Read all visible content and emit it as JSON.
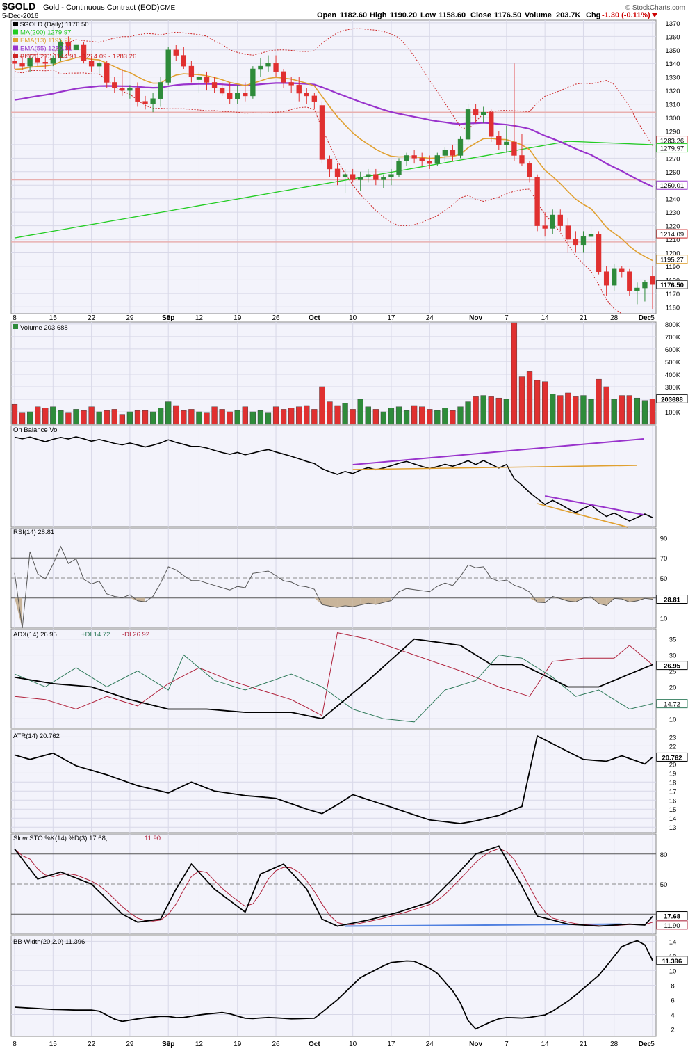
{
  "header": {
    "symbol": "$GOLD",
    "description": "Gold - Continuous Contract (EOD)",
    "exchange": "CME",
    "date": "5-Dec-2016",
    "open_label": "Open",
    "open": "1182.60",
    "high_label": "High",
    "high": "1190.20",
    "low_label": "Low",
    "low": "1158.60",
    "close_label": "Close",
    "close": "1176.50",
    "volume_label": "Volume",
    "volume": "203.7K",
    "chg_label": "Chg",
    "chg": "-1.30 (-0.11%)",
    "watermark": "© StockCharts.com"
  },
  "colors": {
    "up": "#2e8b3a",
    "down": "#e03030",
    "ma200": "#22cc22",
    "ema13": "#e0a030",
    "ema55": "#9933cc",
    "bb": "#cc2222",
    "panel_bg": "#f3f3fb",
    "grid": "#d8d8e8"
  },
  "panels": {
    "price": {
      "legend": [
        {
          "text": "$GOLD (Daily) 1176.50",
          "color": "#000000"
        },
        {
          "text": "MA(200) 1279.97",
          "color": "#22cc22"
        },
        {
          "text": "EMA(13) 1195.27",
          "color": "#e0a030"
        },
        {
          "text": "EMA(55) 1250.01",
          "color": "#9933cc"
        },
        {
          "text": "BB(20,2.0) 1144.91 - 1214.09 - 1283.26",
          "color": "#cc2222"
        }
      ],
      "tags": [
        {
          "text": "1283.26",
          "value": 1283.26,
          "color": "#cc2222"
        },
        {
          "text": "1279.97",
          "value": 1279.97,
          "color": "#22cc22"
        },
        {
          "text": "1250.01",
          "value": 1250.01,
          "color": "#9933cc"
        },
        {
          "text": "1214.09",
          "value": 1214.09,
          "color": "#cc2222"
        },
        {
          "text": "1195.27",
          "value": 1195.27,
          "color": "#e0a030"
        },
        {
          "text": "1176.50",
          "value": 1176.5,
          "color": "#000000"
        }
      ]
    },
    "volume": {
      "legend": "Volume 203,688",
      "tag": "203688"
    },
    "obv": {
      "legend": "On Balance Vol"
    },
    "rsi": {
      "legend": "RSI(14) 28.81",
      "tag": "28.81"
    },
    "adx": {
      "legend_adx": "ADX(14) 26.95",
      "legend_pdi": "+DI 14.72",
      "legend_mdi": "-DI 26.92",
      "tag_adx": "26.95",
      "tag_pdi": "14.72"
    },
    "atr": {
      "legend": "ATR(14) 20.762",
      "tag": "20.762"
    },
    "sto": {
      "legend_k": "Slow STO %K(14) %D(3) 17.68,",
      "legend_d": "11.90",
      "tag_k": "17.68",
      "tag_d": "11.90"
    },
    "bbw": {
      "legend": "BB Width(20,2.0) 11.396",
      "tag": "11.396"
    }
  },
  "chart_data": {
    "type": "candlestick",
    "dates": [
      "Aug 8",
      "Aug 9",
      "Aug 10",
      "Aug 11",
      "Aug 12",
      "Aug 15",
      "Aug 16",
      "Aug 17",
      "Aug 18",
      "Aug 19",
      "Aug 22",
      "Aug 23",
      "Aug 24",
      "Aug 25",
      "Aug 26",
      "Aug 29",
      "Aug 30",
      "Aug 31",
      "Sep 1",
      "Sep 2",
      "Sep 6",
      "Sep 7",
      "Sep 8",
      "Sep 9",
      "Sep 12",
      "Sep 13",
      "Sep 14",
      "Sep 15",
      "Sep 16",
      "Sep 19",
      "Sep 20",
      "Sep 21",
      "Sep 22",
      "Sep 23",
      "Sep 26",
      "Sep 27",
      "Sep 28",
      "Sep 29",
      "Sep 30",
      "Oct 3",
      "Oct 4",
      "Oct 5",
      "Oct 6",
      "Oct 7",
      "Oct 10",
      "Oct 11",
      "Oct 12",
      "Oct 13",
      "Oct 14",
      "Oct 17",
      "Oct 18",
      "Oct 19",
      "Oct 20",
      "Oct 21",
      "Oct 24",
      "Oct 25",
      "Oct 26",
      "Oct 27",
      "Oct 28",
      "Oct 31",
      "Nov 1",
      "Nov 2",
      "Nov 3",
      "Nov 4",
      "Nov 7",
      "Nov 8",
      "Nov 9",
      "Nov 10",
      "Nov 11",
      "Nov 14",
      "Nov 15",
      "Nov 16",
      "Nov 17",
      "Nov 18",
      "Nov 21",
      "Nov 22",
      "Nov 23",
      "Nov 25",
      "Nov 28",
      "Nov 29",
      "Nov 30",
      "Dec 1",
      "Dec 2",
      "Dec 5"
    ],
    "x_tick_labels": [
      {
        "label": "8",
        "index": 0
      },
      {
        "label": "15",
        "index": 5
      },
      {
        "label": "22",
        "index": 10
      },
      {
        "label": "29",
        "index": 15
      },
      {
        "label": "Sep",
        "index": 20,
        "bold": true
      },
      {
        "label": "6",
        "index": 20
      },
      {
        "label": "12",
        "index": 24
      },
      {
        "label": "19",
        "index": 29
      },
      {
        "label": "26",
        "index": 34
      },
      {
        "label": "Oct",
        "index": 39,
        "bold": true
      },
      {
        "label": "10",
        "index": 44
      },
      {
        "label": "17",
        "index": 49
      },
      {
        "label": "24",
        "index": 54
      },
      {
        "label": "Nov",
        "index": 60,
        "bold": true
      },
      {
        "label": "7",
        "index": 64
      },
      {
        "label": "14",
        "index": 69
      },
      {
        "label": "21",
        "index": 74
      },
      {
        "label": "28",
        "index": 78
      },
      {
        "label": "Dec",
        "index": 82,
        "bold": true
      },
      {
        "label": "5",
        "index": 83
      }
    ],
    "ohlc": [
      [
        1342,
        1348,
        1336,
        1340
      ],
      [
        1340,
        1345,
        1335,
        1338
      ],
      [
        1338,
        1346,
        1334,
        1344
      ],
      [
        1344,
        1348,
        1338,
        1341
      ],
      [
        1341,
        1346,
        1336,
        1340
      ],
      [
        1340,
        1346,
        1338,
        1344
      ],
      [
        1344,
        1358,
        1342,
        1356
      ],
      [
        1356,
        1360,
        1346,
        1350
      ],
      [
        1350,
        1358,
        1346,
        1354
      ],
      [
        1354,
        1356,
        1340,
        1342
      ],
      [
        1342,
        1346,
        1334,
        1338
      ],
      [
        1338,
        1342,
        1332,
        1340
      ],
      [
        1340,
        1342,
        1322,
        1326
      ],
      [
        1326,
        1330,
        1318,
        1322
      ],
      [
        1322,
        1336,
        1316,
        1320
      ],
      [
        1320,
        1324,
        1314,
        1322
      ],
      [
        1322,
        1326,
        1308,
        1312
      ],
      [
        1312,
        1316,
        1306,
        1310
      ],
      [
        1310,
        1318,
        1304,
        1314
      ],
      [
        1314,
        1330,
        1308,
        1326
      ],
      [
        1326,
        1352,
        1324,
        1350
      ],
      [
        1350,
        1354,
        1342,
        1346
      ],
      [
        1346,
        1352,
        1336,
        1338
      ],
      [
        1338,
        1342,
        1326,
        1330
      ],
      [
        1328,
        1334,
        1318,
        1330
      ],
      [
        1330,
        1334,
        1320,
        1326
      ],
      [
        1326,
        1330,
        1318,
        1322
      ],
      [
        1322,
        1326,
        1316,
        1318
      ],
      [
        1318,
        1326,
        1310,
        1314
      ],
      [
        1314,
        1324,
        1310,
        1318
      ],
      [
        1318,
        1326,
        1312,
        1316
      ],
      [
        1316,
        1338,
        1314,
        1336
      ],
      [
        1336,
        1344,
        1330,
        1338
      ],
      [
        1338,
        1346,
        1334,
        1340
      ],
      [
        1340,
        1346,
        1330,
        1334
      ],
      [
        1334,
        1336,
        1322,
        1326
      ],
      [
        1326,
        1330,
        1318,
        1324
      ],
      [
        1324,
        1330,
        1312,
        1318
      ],
      [
        1318,
        1322,
        1310,
        1316
      ],
      [
        1316,
        1318,
        1306,
        1312
      ],
      [
        1309,
        1312,
        1266,
        1269
      ],
      [
        1269,
        1272,
        1256,
        1262
      ],
      [
        1262,
        1266,
        1250,
        1256
      ],
      [
        1256,
        1262,
        1244,
        1258
      ],
      [
        1258,
        1262,
        1252,
        1254
      ],
      [
        1254,
        1260,
        1246,
        1256
      ],
      [
        1256,
        1262,
        1252,
        1258
      ],
      [
        1258,
        1262,
        1250,
        1254
      ],
      [
        1254,
        1258,
        1248,
        1256
      ],
      [
        1256,
        1262,
        1250,
        1258
      ],
      [
        1258,
        1270,
        1256,
        1268
      ],
      [
        1268,
        1274,
        1264,
        1272
      ],
      [
        1272,
        1276,
        1266,
        1270
      ],
      [
        1270,
        1274,
        1264,
        1268
      ],
      [
        1268,
        1272,
        1262,
        1266
      ],
      [
        1266,
        1274,
        1264,
        1272
      ],
      [
        1272,
        1278,
        1268,
        1276
      ],
      [
        1276,
        1280,
        1268,
        1272
      ],
      [
        1272,
        1286,
        1270,
        1284
      ],
      [
        1284,
        1310,
        1282,
        1306
      ],
      [
        1306,
        1310,
        1296,
        1302
      ],
      [
        1302,
        1308,
        1296,
        1304
      ],
      [
        1304,
        1306,
        1282,
        1286
      ],
      [
        1286,
        1290,
        1276,
        1280
      ],
      [
        1280,
        1294,
        1274,
        1282
      ],
      [
        1282,
        1340,
        1268,
        1272
      ],
      [
        1272,
        1288,
        1264,
        1266
      ],
      [
        1266,
        1268,
        1252,
        1256
      ],
      [
        1256,
        1258,
        1216,
        1220
      ],
      [
        1220,
        1230,
        1212,
        1218
      ],
      [
        1218,
        1232,
        1214,
        1228
      ],
      [
        1228,
        1232,
        1216,
        1220
      ],
      [
        1220,
        1226,
        1200,
        1210
      ],
      [
        1210,
        1216,
        1200,
        1206
      ],
      [
        1206,
        1216,
        1200,
        1212
      ],
      [
        1212,
        1220,
        1198,
        1214
      ],
      [
        1214,
        1216,
        1184,
        1186
      ],
      [
        1186,
        1190,
        1168,
        1176
      ],
      [
        1176,
        1192,
        1172,
        1188
      ],
      [
        1188,
        1190,
        1182,
        1186
      ],
      [
        1186,
        1188,
        1168,
        1172
      ],
      [
        1172,
        1178,
        1162,
        1174
      ],
      [
        1174,
        1180,
        1164,
        1178
      ],
      [
        1182.6,
        1190.2,
        1158.6,
        1176.5
      ]
    ],
    "ma200": {
      "start_index": 0,
      "start": 1211,
      "end_index": 83,
      "end": 1279.97,
      "plateau_index": 72,
      "plateau": 1282.5
    },
    "ema13_end": 1195.27,
    "ema55_end": 1250.01,
    "bb_end": {
      "upper": 1283.26,
      "middle": 1214.09,
      "lower": 1144.91
    },
    "price_axis": {
      "min": 1155,
      "max": 1372,
      "ticks": [
        1160,
        1170,
        1180,
        1190,
        1200,
        1210,
        1220,
        1230,
        1240,
        1250,
        1260,
        1270,
        1280,
        1290,
        1300,
        1310,
        1320,
        1330,
        1340,
        1350,
        1360,
        1370
      ]
    },
    "horizontal_lines": [
      1304,
      1254,
      1208
    ],
    "volume": [
      160,
      90,
      100,
      140,
      130,
      140,
      110,
      90,
      120,
      110,
      140,
      100,
      110,
      120,
      80,
      100,
      110,
      110,
      100,
      130,
      180,
      150,
      110,
      120,
      100,
      90,
      140,
      120,
      100,
      110,
      140,
      100,
      110,
      90,
      140,
      120,
      130,
      140,
      150,
      120,
      300,
      180,
      150,
      170,
      120,
      200,
      140,
      120,
      100,
      130,
      140,
      110,
      150,
      140,
      120,
      110,
      130,
      110,
      140,
      180,
      220,
      230,
      220,
      210,
      200,
      810,
      380,
      420,
      350,
      340,
      240,
      230,
      250,
      220,
      230,
      200,
      360,
      300,
      200,
      230,
      230,
      210,
      190,
      203.688
    ],
    "volume_axis": {
      "max": 800,
      "ticks": [
        {
          "value": 100,
          "label": "100K"
        },
        {
          "value": 200,
          "label": "200K"
        },
        {
          "value": 300,
          "label": "300K"
        },
        {
          "value": 400,
          "label": "400K"
        },
        {
          "value": 500,
          "label": "500K"
        },
        {
          "value": 600,
          "label": "600K"
        },
        {
          "value": 700,
          "label": "700K"
        },
        {
          "value": 800,
          "label": "800K"
        }
      ]
    },
    "rsi_axis": {
      "ticks": [
        10,
        30,
        50,
        70,
        90
      ],
      "overbought": 70,
      "oversold": 30
    },
    "rsi_end": 28.81,
    "adx_axis": {
      "ticks": [
        10,
        15,
        20,
        25,
        30,
        35
      ]
    },
    "adx_end": {
      "adx": 26.95,
      "pdi": 14.72,
      "mdi": 26.92
    },
    "atr_axis": {
      "ticks": [
        13,
        14,
        15,
        16,
        17,
        18,
        19,
        20,
        21,
        22,
        23
      ]
    },
    "atr_end": 20.762,
    "sto_axis": {
      "ticks": [
        20,
        50,
        80
      ]
    },
    "sto_end": {
      "k": 17.68,
      "d": 11.9
    },
    "bbw_axis": {
      "ticks": [
        2,
        4,
        6,
        8,
        10,
        12,
        14
      ]
    },
    "bbw_end": 11.396
  }
}
